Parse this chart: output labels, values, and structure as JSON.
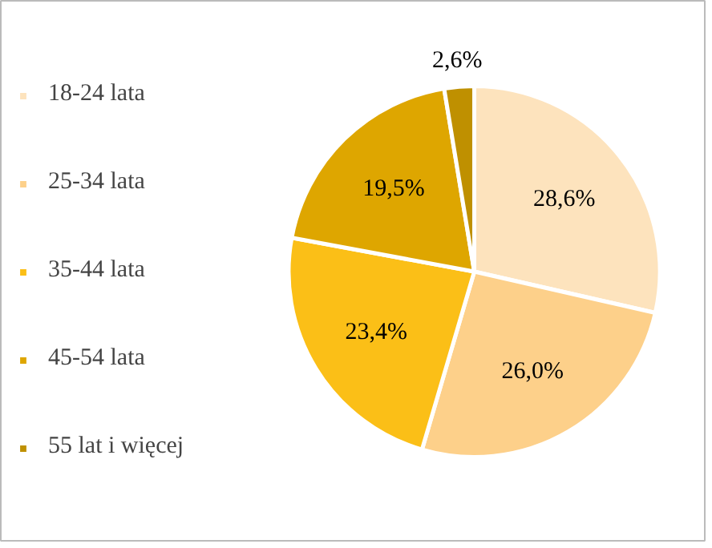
{
  "chart_data": {
    "type": "pie",
    "categories": [
      "18-24 lata",
      "25-34 lata",
      "35-44 lata",
      "45-54 lata",
      "55 lat i więcej"
    ],
    "values": [
      28.6,
      26.0,
      23.4,
      19.5,
      2.6
    ],
    "value_labels": [
      "28,6%",
      "26,0%",
      "23,4%",
      "19,5%",
      "2,6%"
    ],
    "colors": [
      "#fde3bd",
      "#fdd08a",
      "#fbbf17",
      "#dea600",
      "#bf9000"
    ],
    "legend": "left"
  }
}
